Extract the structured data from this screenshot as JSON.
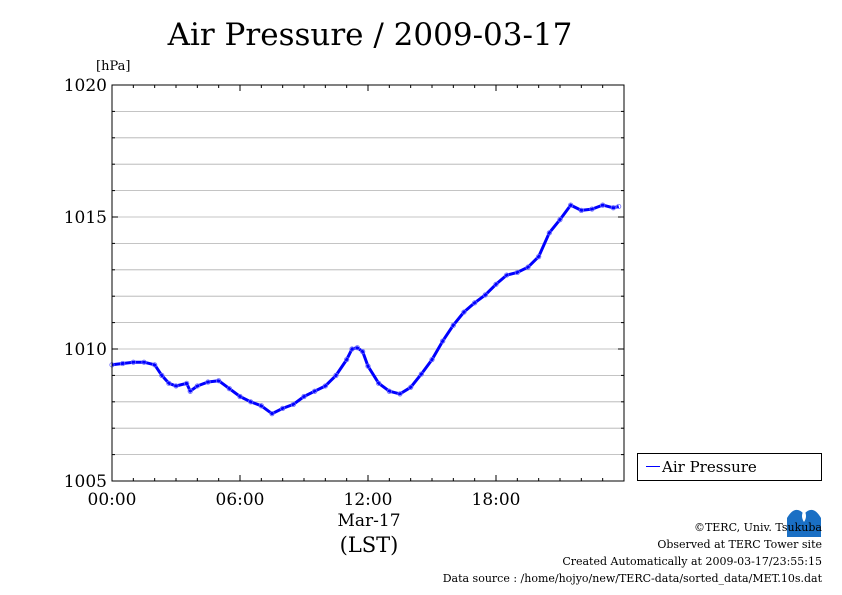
{
  "chart_data": {
    "type": "line",
    "title": "Air Pressure / 2009-03-17",
    "ylabel": "[hPa]",
    "xlabel": "(LST)",
    "x_date_label": "Mar-17",
    "ylim": [
      1005,
      1020
    ],
    "xlim": [
      "00:00",
      "24:00"
    ],
    "yticks": [
      "1005",
      "1010",
      "1015",
      "1020"
    ],
    "xticks": [
      "00:00",
      "06:00",
      "12:00",
      "18:00"
    ],
    "grid": true,
    "legend": "right",
    "series": [
      {
        "name": "Air Pressure",
        "color": "#0000ff",
        "x": [
          "00:00",
          "00:30",
          "01:00",
          "01:30",
          "02:00",
          "02:20",
          "02:40",
          "03:00",
          "03:30",
          "03:40",
          "04:00",
          "04:30",
          "05:00",
          "05:30",
          "06:00",
          "06:30",
          "07:00",
          "07:30",
          "08:00",
          "08:30",
          "09:00",
          "09:30",
          "10:00",
          "10:30",
          "11:00",
          "11:15",
          "11:30",
          "11:45",
          "12:00",
          "12:30",
          "13:00",
          "13:30",
          "14:00",
          "14:30",
          "15:00",
          "15:30",
          "16:00",
          "16:30",
          "17:00",
          "17:30",
          "18:00",
          "18:30",
          "19:00",
          "19:30",
          "20:00",
          "20:30",
          "21:00",
          "21:30",
          "22:00",
          "22:30",
          "23:00",
          "23:30",
          "23:45"
        ],
        "values": [
          1009.4,
          1009.45,
          1009.5,
          1009.5,
          1009.4,
          1009.0,
          1008.7,
          1008.6,
          1008.7,
          1008.4,
          1008.6,
          1008.75,
          1008.8,
          1008.5,
          1008.2,
          1008.0,
          1007.85,
          1007.55,
          1007.75,
          1007.9,
          1008.2,
          1008.4,
          1008.6,
          1009.0,
          1009.6,
          1010.0,
          1010.05,
          1009.9,
          1009.35,
          1008.7,
          1008.4,
          1008.3,
          1008.55,
          1009.05,
          1009.6,
          1010.3,
          1010.9,
          1011.4,
          1011.75,
          1012.05,
          1012.45,
          1012.8,
          1012.9,
          1013.1,
          1013.5,
          1014.4,
          1014.9,
          1015.45,
          1015.25,
          1015.3,
          1015.45,
          1015.35,
          1015.4
        ]
      }
    ]
  },
  "credits": {
    "copyright": "©TERC, Univ. Tsukuba",
    "observed": "Observed at TERC Tower site",
    "created": "Created Automatically at 2009-03-17/23:55:15",
    "source": "Data source : /home/hojyo/new/TERC-data/sorted_data/MET.10s.dat"
  },
  "logo_text": "TERC"
}
